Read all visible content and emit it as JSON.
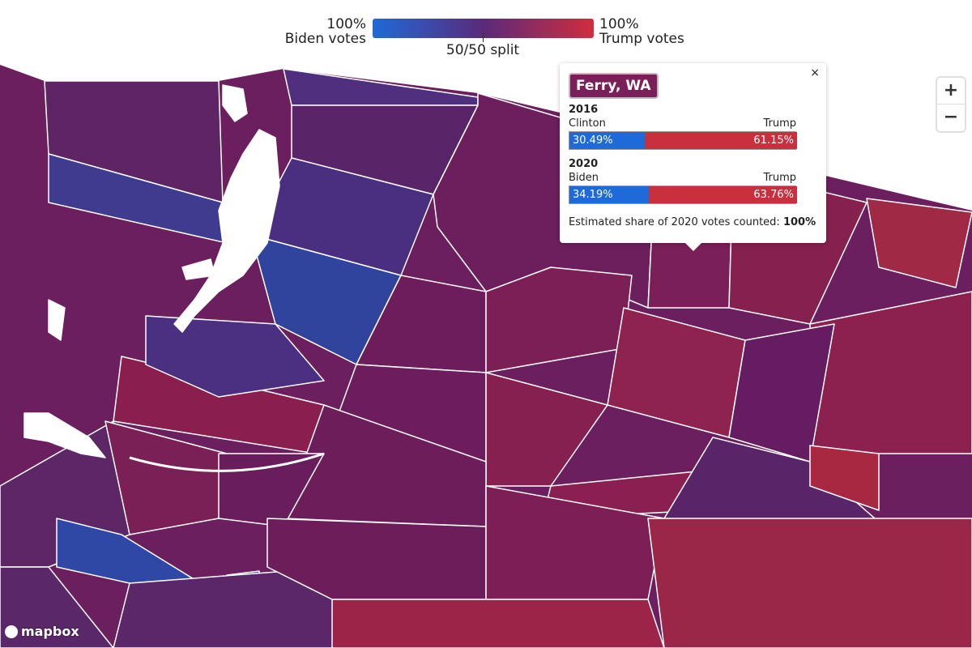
{
  "legend": {
    "left_pct": "100%",
    "left_label": "Biden votes",
    "mid": "50/50 split",
    "right_pct": "100%",
    "right_label": "Trump votes"
  },
  "popup": {
    "title": "Ferry, WA",
    "close": "×",
    "elections": [
      {
        "year": "2016",
        "dem_name": "Clinton",
        "rep_name": "Trump",
        "dem": {
          "value": 30.49,
          "label": "30.49%"
        },
        "rep": {
          "value": 61.15,
          "label": "61.15%"
        }
      },
      {
        "year": "2020",
        "dem_name": "Biden",
        "rep_name": "Trump",
        "dem": {
          "value": 34.19,
          "label": "34.19%"
        },
        "rep": {
          "value": 63.76,
          "label": "63.76%"
        }
      }
    ],
    "note": "Estimated share of 2020 votes counted:",
    "note_value": "100%"
  },
  "controls": {
    "zoom_in": "+",
    "zoom_out": "−"
  },
  "attribution": "mapbox"
}
